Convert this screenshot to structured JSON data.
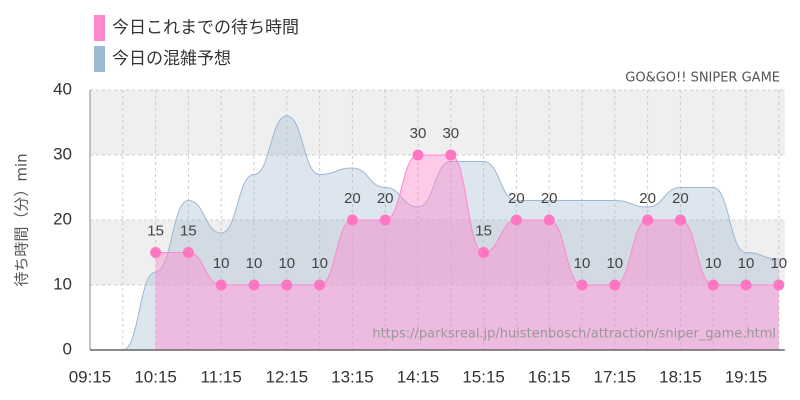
{
  "chart_data": {
    "type": "area",
    "watermark": "GO&GO!! SNIPER GAME",
    "source": "https://parksreal.jp/huistenbosch/attraction/sniper_game.html",
    "y_label": "待ち時間（分）min",
    "categories": [
      "09:15",
      null,
      "10:15",
      null,
      "11:15",
      null,
      "12:15",
      null,
      "13:15",
      null,
      "14:15",
      null,
      "15:15",
      null,
      "16:15",
      null,
      "17:15",
      null,
      "18:15",
      null,
      "19:15",
      null
    ],
    "ylim": [
      0,
      40
    ],
    "yticks": [
      0,
      10,
      20,
      30,
      40
    ],
    "grid": true,
    "series": [
      {
        "name": "今日の混雑予想",
        "color": "#9db8d2",
        "values": [
          0,
          0,
          12,
          23,
          18,
          27,
          36,
          27,
          28,
          25,
          22,
          29,
          29,
          23,
          23,
          23,
          23,
          22,
          25,
          25,
          15,
          14
        ]
      },
      {
        "name": "今日これまでの待ち時間",
        "color": "#ff88cc",
        "values": [
          null,
          null,
          15,
          15,
          10,
          10,
          10,
          10,
          20,
          20,
          30,
          30,
          15,
          20,
          20,
          10,
          10,
          20,
          20,
          10,
          10,
          10
        ]
      }
    ]
  }
}
